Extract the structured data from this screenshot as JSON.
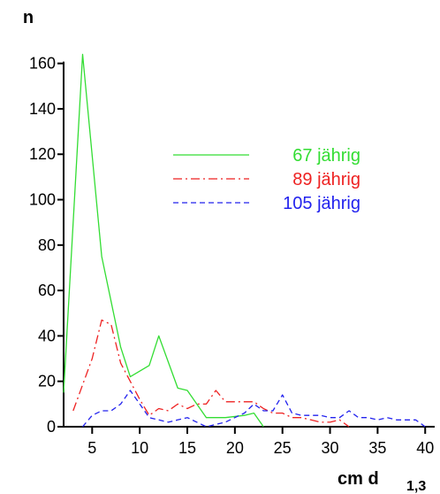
{
  "chart_data": {
    "type": "line",
    "ylabel": "n",
    "xlabel": "cm d",
    "xlabel_sub": "1,3",
    "xlim": [
      2,
      41
    ],
    "ylim": [
      0,
      170
    ],
    "x_ticks": [
      5,
      10,
      15,
      20,
      25,
      30,
      35,
      40
    ],
    "y_ticks": [
      0,
      20,
      40,
      60,
      80,
      100,
      120,
      140,
      160
    ],
    "grid": false,
    "legend_position": "center-right",
    "series": [
      {
        "name": "67 jährig",
        "color": "#33dd33",
        "dash": "solid",
        "x": [
          2,
          4,
          6,
          8,
          9,
          11,
          12,
          14,
          15,
          17,
          19,
          21,
          22,
          23
        ],
        "y": [
          15,
          164,
          75,
          35,
          22,
          27,
          40,
          17,
          16,
          4,
          4,
          5,
          6,
          0
        ]
      },
      {
        "name": "89 jährig",
        "color": "#ee2222",
        "dash": "dashdot",
        "x": [
          3,
          5,
          6,
          7,
          8,
          9,
          10,
          11,
          12,
          13,
          14,
          15,
          16,
          17,
          18,
          19,
          20,
          21,
          22,
          23,
          24,
          25,
          26,
          27,
          28,
          29,
          30,
          31,
          32
        ],
        "y": [
          7,
          30,
          47,
          45,
          28,
          20,
          12,
          5,
          8,
          7,
          10,
          8,
          10,
          10,
          16,
          11,
          11,
          11,
          11,
          8,
          6,
          6,
          4,
          4,
          3,
          2,
          2,
          3,
          0
        ]
      },
      {
        "name": "105 jährig",
        "color": "#2222ee",
        "dash": "dashed",
        "x": [
          4,
          5,
          6,
          7,
          8,
          9,
          10,
          11,
          12,
          13,
          14,
          15,
          16,
          17,
          18,
          19,
          20,
          21,
          22,
          23,
          24,
          25,
          26,
          27,
          28,
          29,
          30,
          31,
          32,
          33,
          34,
          35,
          36,
          37,
          38,
          39,
          40
        ],
        "y": [
          0,
          5,
          7,
          7,
          10,
          16,
          10,
          4,
          3,
          2,
          3,
          4,
          2,
          0,
          1,
          2,
          4,
          6,
          10,
          7,
          7,
          14,
          6,
          5,
          5,
          5,
          4,
          4,
          7,
          4,
          4,
          3,
          4,
          3,
          3,
          3,
          0
        ]
      }
    ]
  }
}
